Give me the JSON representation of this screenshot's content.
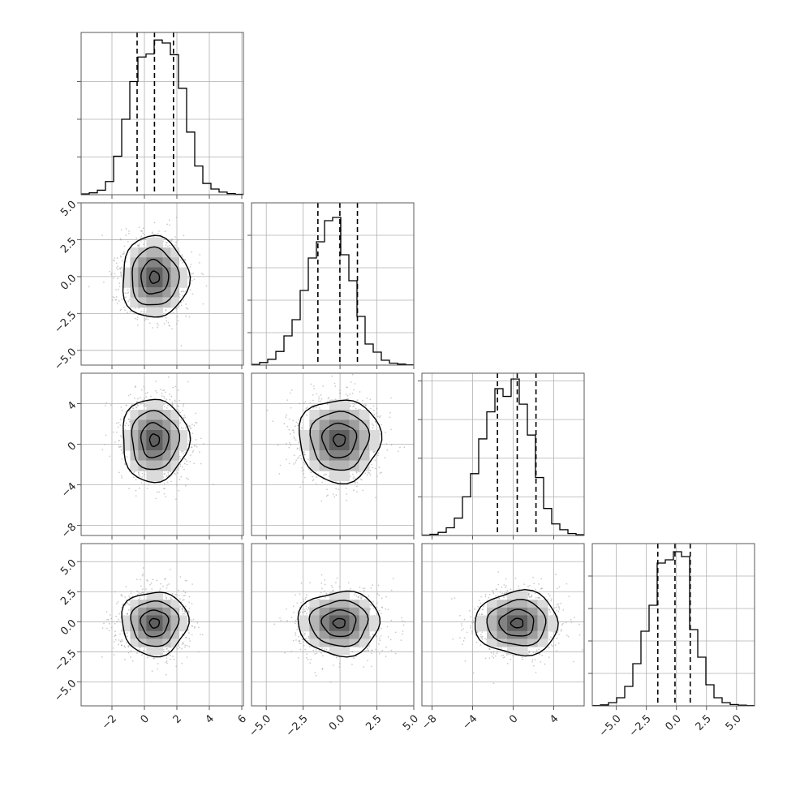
{
  "chart_data": {
    "type": "corner",
    "grid": true,
    "parameters": [
      {
        "range": [
          -3.9,
          6.1
        ],
        "ticks": [
          -2,
          0,
          2,
          4,
          6
        ],
        "tick_labels": [
          "−2",
          "0",
          "2",
          "4",
          "6"
        ],
        "quantiles": [
          -0.45,
          0.62,
          1.79
        ],
        "hist_edges": [
          -3.9,
          -3.4,
          -2.9,
          -2.4,
          -1.9,
          -1.4,
          -0.9,
          -0.4,
          0.1,
          0.6,
          1.1,
          1.6,
          2.1,
          2.6,
          3.1,
          3.6,
          4.1,
          4.6,
          5.1,
          5.6,
          6.1
        ],
        "hist_counts": [
          2,
          5,
          12,
          35,
          102,
          200,
          300,
          365,
          373,
          410,
          402,
          371,
          282,
          166,
          76,
          30,
          15,
          7,
          3,
          1
        ],
        "hist_ymax": 430,
        "hist_ticks": [
          100,
          200,
          300
        ],
        "mean": 0.62,
        "sd": 1.0
      },
      {
        "range": [
          -6.0,
          5.0
        ],
        "ticks": [
          -5.0,
          -2.5,
          0.0,
          2.5,
          5.0
        ],
        "tick_labels": [
          "−5.0",
          "−2.5",
          "0.0",
          "2.5",
          "5.0"
        ],
        "quantiles": [
          -1.5,
          -0.01,
          1.18
        ],
        "hist_edges": [
          -6.0,
          -5.45,
          -4.9,
          -4.35,
          -3.8,
          -3.25,
          -2.7,
          -2.15,
          -1.6,
          -1.05,
          -0.5,
          0.05,
          0.6,
          1.15,
          1.7,
          2.25,
          2.8,
          3.35,
          3.9,
          4.45,
          5.0
        ],
        "hist_counts": [
          2,
          8,
          18,
          42,
          90,
          140,
          230,
          330,
          380,
          445,
          455,
          340,
          260,
          150,
          65,
          40,
          15,
          6,
          3,
          1
        ],
        "hist_ymax": 500,
        "hist_ticks": [
          100,
          200,
          300,
          400
        ],
        "mean": -0.05,
        "sd": 1.35
      },
      {
        "range": [
          -9.0,
          7.0
        ],
        "ticks": [
          -8,
          -4,
          0,
          4
        ],
        "tick_labels": [
          "−8",
          "−4",
          "0",
          "4"
        ],
        "quantiles": [
          -1.55,
          0.4,
          2.25
        ],
        "hist_edges": [
          -9.0,
          -8.2,
          -7.4,
          -6.6,
          -5.8,
          -5.0,
          -4.2,
          -3.4,
          -2.6,
          -1.8,
          -1.0,
          -0.2,
          0.6,
          1.4,
          2.2,
          3.0,
          3.8,
          4.6,
          5.4,
          6.2,
          7.0
        ],
        "hist_counts": [
          1,
          3,
          8,
          20,
          45,
          100,
          160,
          250,
          320,
          380,
          360,
          405,
          340,
          260,
          150,
          70,
          30,
          15,
          5,
          2
        ],
        "hist_ymax": 420,
        "hist_ticks": [
          100,
          200,
          300,
          400
        ],
        "mean": 0.4,
        "sd": 2.0
      },
      {
        "range": [
          -7.0,
          6.5
        ],
        "ticks": [
          -5.0,
          -2.5,
          0.0,
          2.5,
          5.0
        ],
        "tick_labels": [
          "−5.0",
          "−2.5",
          "0.0",
          "2.5",
          "5.0"
        ],
        "quantiles": [
          -1.55,
          -0.12,
          1.15
        ],
        "hist_edges": [
          -7.0,
          -6.325,
          -5.65,
          -4.975,
          -4.3,
          -3.625,
          -2.95,
          -2.275,
          -1.6,
          -0.925,
          -0.25,
          0.425,
          1.1,
          1.775,
          2.45,
          3.125,
          3.8,
          4.475,
          5.15,
          5.825,
          6.5
        ],
        "hist_counts": [
          1,
          3,
          10,
          25,
          60,
          130,
          230,
          310,
          440,
          450,
          475,
          460,
          235,
          150,
          65,
          25,
          10,
          4,
          2,
          1
        ],
        "hist_ymax": 500,
        "hist_ticks": [
          100,
          200,
          300,
          400
        ],
        "mean": -0.12,
        "sd": 1.3
      }
    ]
  },
  "colors": {
    "line": "#000000",
    "frame": "#5a5a5a",
    "grid": "#b0b0b0",
    "scatter": "#9a9a9a"
  }
}
